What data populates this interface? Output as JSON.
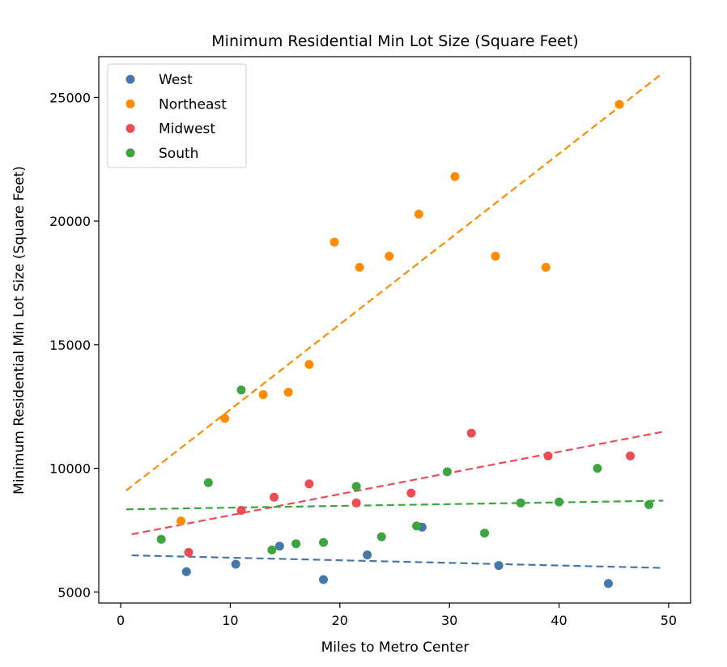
{
  "chart_data": {
    "type": "scatter",
    "title": "Minimum Residential Min Lot Size (Square Feet)",
    "xlabel": "Miles to Metro Center",
    "ylabel": "Minimum Residential Min Lot Size (Square Feet)",
    "xlim": [
      -2,
      52
    ],
    "ylim": [
      4550,
      26650
    ],
    "xticks": [
      0,
      10,
      20,
      30,
      40,
      50
    ],
    "yticks": [
      5000,
      10000,
      15000,
      20000,
      25000
    ],
    "grid": false,
    "legend_position": "top-left",
    "series": [
      {
        "name": "West",
        "color": "#4477aa",
        "points": [
          [
            6,
            5820
          ],
          [
            10.5,
            6120
          ],
          [
            14.5,
            6850
          ],
          [
            18.5,
            5500
          ],
          [
            22.5,
            6500
          ],
          [
            27.5,
            7620
          ],
          [
            34.5,
            6070
          ],
          [
            44.5,
            5340
          ]
        ],
        "trend": {
          "x": [
            1,
            49.5
          ],
          "y": [
            6480,
            5970
          ]
        }
      },
      {
        "name": "Northeast",
        "color": "#ff8c00",
        "points": [
          [
            5.5,
            7870
          ],
          [
            9.5,
            12020
          ],
          [
            13,
            12980
          ],
          [
            15.3,
            13080
          ],
          [
            17.2,
            14200
          ],
          [
            19.5,
            19150
          ],
          [
            21.8,
            18130
          ],
          [
            24.5,
            18580
          ],
          [
            27.2,
            20280
          ],
          [
            30.5,
            21800
          ],
          [
            34.2,
            18580
          ],
          [
            38.8,
            18130
          ],
          [
            45.5,
            24720
          ]
        ],
        "trend": {
          "x": [
            0.5,
            49.5
          ],
          "y": [
            9100,
            26000
          ]
        }
      },
      {
        "name": "Midwest",
        "color": "#ee4c54",
        "points": [
          [
            6.2,
            6600
          ],
          [
            11,
            8300
          ],
          [
            14,
            8830
          ],
          [
            17.2,
            9370
          ],
          [
            21.5,
            8600
          ],
          [
            26.5,
            9000
          ],
          [
            32,
            11420
          ],
          [
            39,
            10500
          ],
          [
            46.5,
            10500
          ]
        ],
        "trend": {
          "x": [
            1,
            49.5
          ],
          "y": [
            7330,
            11480
          ]
        }
      },
      {
        "name": "South",
        "color": "#3da53d",
        "points": [
          [
            3.7,
            7130
          ],
          [
            8,
            9420
          ],
          [
            11,
            13170
          ],
          [
            13.8,
            6700
          ],
          [
            16,
            6950
          ],
          [
            18.5,
            7000
          ],
          [
            21.5,
            9270
          ],
          [
            23.8,
            7230
          ],
          [
            27,
            7670
          ],
          [
            29.8,
            9860
          ],
          [
            33.2,
            7380
          ],
          [
            36.5,
            8600
          ],
          [
            40,
            8640
          ],
          [
            43.5,
            10000
          ],
          [
            48.2,
            8530
          ]
        ],
        "trend": {
          "x": [
            0.5,
            49.5
          ],
          "y": [
            8340,
            8690
          ]
        }
      }
    ]
  }
}
